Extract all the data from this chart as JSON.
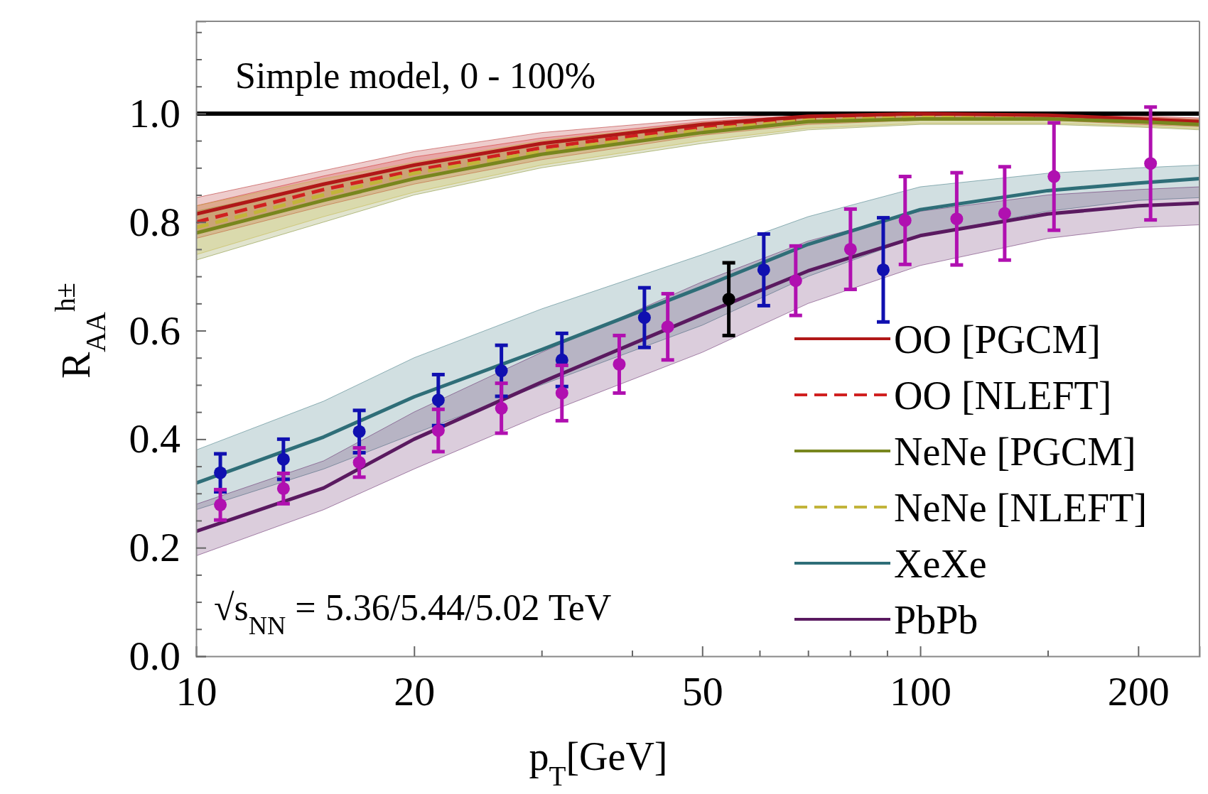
{
  "chart_data": {
    "type": "line",
    "xlabel": "p$_{T}$[GeV]",
    "ylabel": "R$_{AA}$$^{h±}$",
    "log": "x",
    "xlim": [
      10,
      243
    ],
    "ylim": [
      0,
      1.17
    ],
    "xticks": [
      10,
      20,
      {
        "value": 30,
        "label": null
      },
      {
        "value": 40,
        "label": null
      },
      50,
      {
        "value": 60,
        "label": null
      },
      {
        "value": 70,
        "label": null
      },
      {
        "value": 80,
        "label": null
      },
      {
        "value": 90,
        "label": null
      },
      100,
      {
        "value": 150,
        "label": null
      },
      200
    ],
    "yticks": [
      {
        "value": 0,
        "label": "0.0"
      },
      {
        "value": 0.05,
        "label": null
      },
      {
        "value": 0.1,
        "label": null
      },
      {
        "value": 0.15,
        "label": null
      },
      0.2,
      {
        "value": 0.25,
        "label": null
      },
      {
        "value": 0.3,
        "label": null
      },
      {
        "value": 0.35,
        "label": null
      },
      0.4,
      {
        "value": 0.45,
        "label": null
      },
      {
        "value": 0.5,
        "label": null
      },
      {
        "value": 0.55,
        "label": null
      },
      0.6,
      {
        "value": 0.65,
        "label": null
      },
      {
        "value": 0.7,
        "label": null
      },
      {
        "value": 0.75,
        "label": null
      },
      0.8,
      {
        "value": 0.85,
        "label": null
      },
      {
        "value": 0.9,
        "label": null
      },
      {
        "value": 0.95,
        "label": null
      },
      {
        "value": 1,
        "label": "1.0"
      },
      {
        "value": 1.05,
        "label": null
      },
      {
        "value": 1.1,
        "label": null
      },
      {
        "value": 1.15,
        "label": null
      }
    ],
    "grid": false,
    "legend": "bottom right",
    "ref_lines": [
      {
        "axis": "y",
        "value": 1,
        "color": "#000000"
      }
    ],
    "annotations": [
      "Simple model, 0 - 100%",
      "√s$_{NN}$ = 5.36/5.44/5.02 TeV"
    ],
    "series": [
      {
        "name": "OO [PGCM]",
        "color": "#b01818",
        "line_style": "solid",
        "x": [
          10,
          15,
          20,
          30,
          50,
          70,
          100,
          150,
          200,
          243
        ],
        "values": [
          0.815,
          0.87,
          0.905,
          0.945,
          0.98,
          0.995,
          1.0,
          0.997,
          0.99,
          0.985
        ],
        "lower": [
          0.78,
          0.84,
          0.88,
          0.925,
          0.965,
          0.985,
          0.99,
          0.99,
          0.982,
          0.978
        ],
        "upper": [
          0.845,
          0.895,
          0.93,
          0.965,
          0.99,
          1.0,
          1.0,
          1.0,
          0.996,
          0.992
        ]
      },
      {
        "name": "OO [NLEFT]",
        "color": "#d02020",
        "line_style": "dashed",
        "x": [
          10,
          15,
          20,
          30,
          50,
          70,
          100,
          150,
          200,
          243
        ],
        "values": [
          0.8,
          0.86,
          0.895,
          0.937,
          0.975,
          0.99,
          0.997,
          0.995,
          0.988,
          0.983
        ],
        "lower": [
          0.77,
          0.83,
          0.87,
          0.915,
          0.96,
          0.98,
          0.988,
          0.988,
          0.98,
          0.976
        ],
        "upper": [
          0.83,
          0.885,
          0.92,
          0.955,
          0.985,
          0.997,
          1.0,
          0.998,
          0.994,
          0.99
        ]
      },
      {
        "name": "NeNe [PGCM]",
        "color": "#78861e",
        "line_style": "solid",
        "x": [
          10,
          15,
          20,
          30,
          50,
          70,
          100,
          150,
          200,
          243
        ],
        "values": [
          0.78,
          0.84,
          0.88,
          0.925,
          0.965,
          0.985,
          0.99,
          0.99,
          0.985,
          0.98
        ],
        "lower": [
          0.73,
          0.8,
          0.85,
          0.9,
          0.945,
          0.97,
          0.98,
          0.98,
          0.975,
          0.97
        ],
        "upper": [
          0.82,
          0.87,
          0.905,
          0.945,
          0.98,
          0.993,
          0.997,
          0.995,
          0.99,
          0.988
        ]
      },
      {
        "name": "NeNe [NLEFT]",
        "color": "#c2b43a",
        "line_style": "dashed",
        "x": [
          10,
          15,
          20,
          30,
          50,
          70,
          100,
          150,
          200,
          243
        ],
        "values": [
          0.79,
          0.85,
          0.89,
          0.93,
          0.97,
          0.988,
          0.993,
          0.992,
          0.987,
          0.982
        ],
        "lower": [
          0.74,
          0.81,
          0.855,
          0.905,
          0.95,
          0.973,
          0.982,
          0.982,
          0.977,
          0.972
        ],
        "upper": [
          0.83,
          0.88,
          0.91,
          0.95,
          0.983,
          0.995,
          0.998,
          0.996,
          0.992,
          0.989
        ]
      },
      {
        "name": "XeXe",
        "color": "#2f6e78",
        "line_style": "solid",
        "x": [
          10,
          15,
          20,
          30,
          50,
          70,
          100,
          150,
          200,
          243
        ],
        "values": [
          0.319,
          0.404,
          0.478,
          0.565,
          0.68,
          0.759,
          0.823,
          0.858,
          0.872,
          0.88
        ],
        "lower": [
          0.27,
          0.345,
          0.41,
          0.5,
          0.61,
          0.7,
          0.775,
          0.82,
          0.84,
          0.845
        ],
        "upper": [
          0.38,
          0.47,
          0.55,
          0.64,
          0.74,
          0.81,
          0.865,
          0.89,
          0.9,
          0.905
        ]
      },
      {
        "name": "PbPb",
        "color": "#5a1a60",
        "line_style": "solid",
        "x": [
          10,
          15,
          20,
          30,
          50,
          70,
          100,
          150,
          200,
          243
        ],
        "values": [
          0.23,
          0.31,
          0.4,
          0.505,
          0.63,
          0.71,
          0.775,
          0.815,
          0.83,
          0.835
        ],
        "lower": [
          0.185,
          0.27,
          0.345,
          0.445,
          0.56,
          0.65,
          0.72,
          0.77,
          0.79,
          0.795
        ],
        "upper": [
          0.28,
          0.36,
          0.45,
          0.56,
          0.69,
          0.765,
          0.82,
          0.85,
          0.86,
          0.865
        ]
      },
      {
        "type": "scatter",
        "color": "#1010b0",
        "marker": "circle",
        "x": [
          10.8,
          13.2,
          16.8,
          21.6,
          26.4,
          32.0,
          41.6,
          60.8,
          88.9
        ],
        "values": [
          0.338,
          0.363,
          0.414,
          0.472,
          0.526,
          0.546,
          0.624,
          0.712,
          0.712
        ],
        "errors": [
          0.035,
          0.037,
          0.039,
          0.047,
          0.047,
          0.049,
          0.055,
          0.066,
          0.096
        ]
      },
      {
        "type": "scatter",
        "color": "#b010b0",
        "marker": "circle",
        "x": [
          10.8,
          13.2,
          16.8,
          21.6,
          26.4,
          32.0,
          38.4,
          44.8,
          67.3,
          80.1,
          95.3,
          112.3,
          130.8,
          153,
          208
        ],
        "values": [
          0.279,
          0.309,
          0.357,
          0.416,
          0.457,
          0.485,
          0.538,
          0.607,
          0.692,
          0.75,
          0.803,
          0.806,
          0.816,
          0.884,
          0.908
        ],
        "errors": [
          0.028,
          0.028,
          0.027,
          0.039,
          0.046,
          0.051,
          0.053,
          0.061,
          0.064,
          0.074,
          0.081,
          0.085,
          0.086,
          0.099,
          0.104
        ]
      },
      {
        "type": "scatter",
        "color": "#000000",
        "marker": "circle",
        "x": [
          54.4
        ],
        "values": [
          0.658
        ],
        "errors": [
          0.067
        ]
      }
    ]
  }
}
